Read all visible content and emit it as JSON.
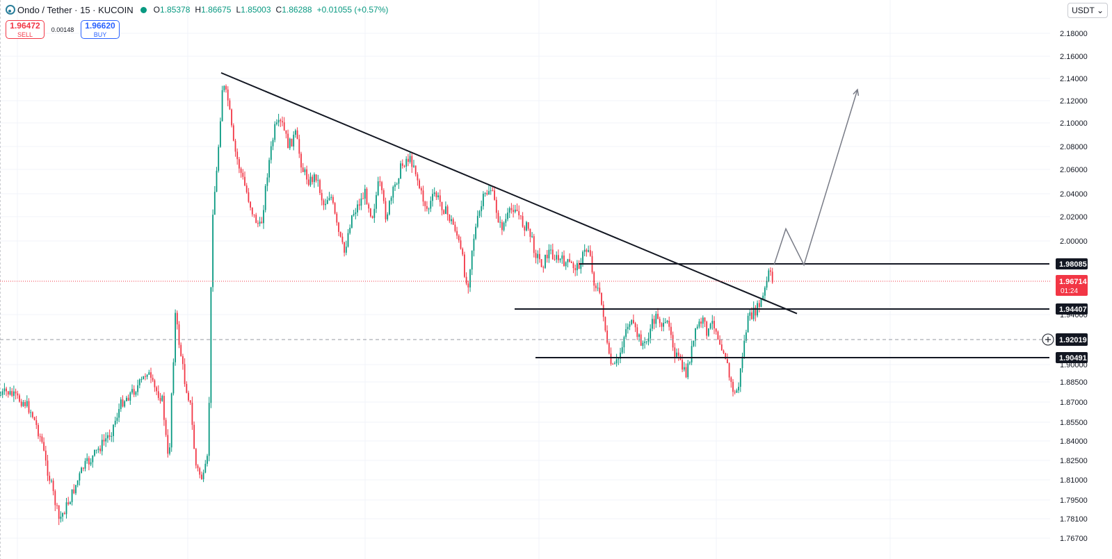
{
  "header": {
    "symbol": "Ondo / Tether · 15 · KUCOIN",
    "ohlc": [
      {
        "k": "O",
        "v": "1.85378"
      },
      {
        "k": "H",
        "v": "1.86675"
      },
      {
        "k": "L",
        "v": "1.85003"
      },
      {
        "k": "C",
        "v": "1.86288"
      },
      {
        "k": "",
        "v": "+0.01055 (+0.57%)"
      }
    ]
  },
  "trade": {
    "sell_price": "1.96472",
    "sell_label": "SELL",
    "spread": "0.00148",
    "buy_price": "1.96620",
    "buy_label": "BUY"
  },
  "currency": "USDT",
  "colors": {
    "up": "#089981",
    "down": "#f23645",
    "line": "#131722",
    "arrow": "#787b86",
    "price": "#f23645"
  },
  "chart_data": {
    "type": "candlestick",
    "y_ticks": [
      "2.18000",
      "2.16000",
      "2.14000",
      "2.12000",
      "2.10000",
      "2.08000",
      "2.06000",
      "2.04000",
      "2.02000",
      "2.00000",
      "1.94000",
      "1.90000",
      "1.88500",
      "1.87000",
      "1.85500",
      "1.84000",
      "1.82500",
      "1.81000",
      "1.79500",
      "1.78100",
      "1.76700"
    ],
    "path": [
      [
        0,
        1.865
      ],
      [
        10,
        1.87
      ],
      [
        25,
        1.86
      ],
      [
        45,
        1.85
      ],
      [
        60,
        1.835
      ],
      [
        72,
        1.81
      ],
      [
        85,
        1.78
      ],
      [
        100,
        1.795
      ],
      [
        120,
        1.82
      ],
      [
        140,
        1.83
      ],
      [
        160,
        1.84
      ],
      [
        180,
        1.86
      ],
      [
        195,
        1.875
      ],
      [
        212,
        1.895
      ],
      [
        222,
        1.875
      ],
      [
        232,
        1.862
      ],
      [
        243,
        1.82
      ],
      [
        252,
        1.94
      ],
      [
        262,
        1.9
      ],
      [
        272,
        1.86
      ],
      [
        282,
        1.82
      ],
      [
        292,
        1.81
      ],
      [
        300,
        1.83
      ],
      [
        305,
        2.02
      ],
      [
        312,
        2.06
      ],
      [
        320,
        2.135
      ],
      [
        328,
        2.12
      ],
      [
        336,
        2.08
      ],
      [
        345,
        2.06
      ],
      [
        355,
        2.04
      ],
      [
        365,
        2.02
      ],
      [
        375,
        2.01
      ],
      [
        385,
        2.06
      ],
      [
        395,
        2.095
      ],
      [
        405,
        2.1
      ],
      [
        415,
        2.08
      ],
      [
        425,
        2.09
      ],
      [
        435,
        2.06
      ],
      [
        445,
        2.05
      ],
      [
        455,
        2.055
      ],
      [
        465,
        2.03
      ],
      [
        475,
        2.04
      ],
      [
        485,
        2.01
      ],
      [
        495,
        1.99
      ],
      [
        505,
        2.02
      ],
      [
        515,
        2.03
      ],
      [
        525,
        2.04
      ],
      [
        535,
        2.02
      ],
      [
        545,
        2.05
      ],
      [
        555,
        2.02
      ],
      [
        565,
        2.04
      ],
      [
        575,
        2.06
      ],
      [
        585,
        2.07
      ],
      [
        595,
        2.065
      ],
      [
        605,
        2.04
      ],
      [
        615,
        2.025
      ],
      [
        625,
        2.04
      ],
      [
        635,
        2.03
      ],
      [
        645,
        2.02
      ],
      [
        655,
        2.01
      ],
      [
        665,
        1.985
      ],
      [
        672,
        1.96
      ],
      [
        680,
        2.0
      ],
      [
        688,
        2.02
      ],
      [
        695,
        2.035
      ],
      [
        705,
        2.045
      ],
      [
        712,
        2.03
      ],
      [
        720,
        2.01
      ],
      [
        730,
        2.02
      ],
      [
        740,
        2.03
      ],
      [
        750,
        2.015
      ],
      [
        760,
        2.01
      ],
      [
        770,
        1.99
      ],
      [
        780,
        1.98
      ],
      [
        790,
        1.992
      ],
      [
        800,
        1.985
      ],
      [
        810,
        1.983
      ],
      [
        820,
        1.98
      ],
      [
        830,
        1.978
      ],
      [
        840,
        1.99
      ],
      [
        848,
        1.995
      ],
      [
        852,
        1.97
      ],
      [
        860,
        1.96
      ],
      [
        868,
        1.94
      ],
      [
        875,
        1.905
      ],
      [
        882,
        1.895
      ],
      [
        890,
        1.905
      ],
      [
        898,
        1.925
      ],
      [
        905,
        1.935
      ],
      [
        912,
        1.928
      ],
      [
        920,
        1.92
      ],
      [
        928,
        1.915
      ],
      [
        936,
        1.93
      ],
      [
        945,
        1.94
      ],
      [
        955,
        1.928
      ],
      [
        962,
        1.935
      ],
      [
        970,
        1.91
      ],
      [
        978,
        1.9
      ],
      [
        986,
        1.89
      ],
      [
        994,
        1.91
      ],
      [
        1002,
        1.93
      ],
      [
        1010,
        1.935
      ],
      [
        1018,
        1.925
      ],
      [
        1026,
        1.935
      ],
      [
        1034,
        1.92
      ],
      [
        1042,
        1.91
      ],
      [
        1050,
        1.885
      ],
      [
        1057,
        1.865
      ],
      [
        1062,
        1.88
      ],
      [
        1068,
        1.91
      ],
      [
        1075,
        1.935
      ],
      [
        1082,
        1.94
      ],
      [
        1090,
        1.945
      ],
      [
        1098,
        1.955
      ],
      [
        1106,
        1.975
      ],
      [
        1113,
        1.962
      ]
    ],
    "trendline": [
      [
        1.4,
        2.145
      ],
      [
        109.4,
        1.9405
      ]
    ],
    "levels": [
      {
        "from": 833,
        "to": 1509,
        "price": 1.98085,
        "label": "1.98085"
      },
      {
        "from": 740,
        "to": 1509,
        "price": 1.94407,
        "label": "1.94407"
      },
      {
        "from": 770,
        "to": 1509,
        "price": 1.90491,
        "label": "1.90491"
      }
    ],
    "crosshair": {
      "price": 1.92019,
      "label": "1.92019"
    },
    "last_price": {
      "price": 1.96714,
      "label": "1.96714",
      "countdown": "01:24"
    },
    "projection": [
      [
        1113,
        1.98
      ],
      [
        1130,
        2.01
      ],
      [
        1156,
        1.98
      ],
      [
        1233,
        2.13
      ]
    ]
  }
}
